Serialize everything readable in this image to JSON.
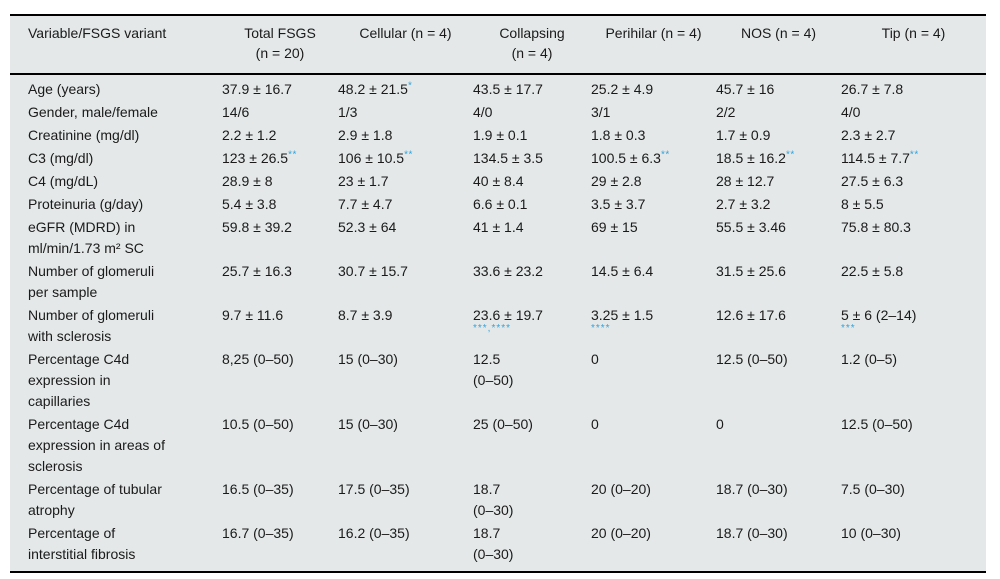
{
  "accent_colors": {
    "table_background": "#e4e8e9",
    "rule_color": "#000000",
    "significance_marker_color": "#35a3d9",
    "text_color": "#1a1a1a"
  },
  "table": {
    "headers": [
      "Variable/FSGS variant",
      "Total FSGS\n(n = 20)",
      "Cellular (n = 4)",
      "Collapsing\n(n = 4)",
      "Perihilar (n = 4)",
      "NOS (n = 4)",
      "Tip (n = 4)"
    ],
    "rows": [
      {
        "label": "Age (years)",
        "cells": [
          {
            "v": "37.9 ± 16.7"
          },
          {
            "v": "48.2 ± 21.5",
            "sup": "*"
          },
          {
            "v": "43.5 ± 17.7"
          },
          {
            "v": "25.2 ± 4.9"
          },
          {
            "v": "45.7 ± 16"
          },
          {
            "v": "26.7 ± 7.8"
          }
        ]
      },
      {
        "label": "Gender, male/female",
        "cells": [
          {
            "v": "14/6"
          },
          {
            "v": "1/3"
          },
          {
            "v": "4/0"
          },
          {
            "v": "3/1"
          },
          {
            "v": "2/2"
          },
          {
            "v": "4/0"
          }
        ]
      },
      {
        "label": "Creatinine (mg/dl)",
        "cells": [
          {
            "v": "2.2 ± 1.2"
          },
          {
            "v": "2.9 ± 1.8"
          },
          {
            "v": "1.9 ± 0.1"
          },
          {
            "v": "1.8 ± 0.3"
          },
          {
            "v": "1.7 ± 0.9"
          },
          {
            "v": "2.3 ± 2.7"
          }
        ]
      },
      {
        "label": "C3 (mg/dl)",
        "cells": [
          {
            "v": "123 ± 26.5",
            "sup": "**"
          },
          {
            "v": "106 ± 10.5",
            "sup": "**"
          },
          {
            "v": "134.5 ± 3.5"
          },
          {
            "v": "100.5 ± 6.3",
            "sup": "**"
          },
          {
            "v": "18.5 ± 16.2",
            "sup": "**"
          },
          {
            "v": "114.5 ± 7.7",
            "sup": "**"
          }
        ]
      },
      {
        "label": "C4 (mg/dL)",
        "cells": [
          {
            "v": "28.9 ± 8"
          },
          {
            "v": "23 ± 1.7"
          },
          {
            "v": "40 ± 8.4"
          },
          {
            "v": "29 ± 2.8"
          },
          {
            "v": "28 ± 12.7"
          },
          {
            "v": "27.5 ± 6.3"
          }
        ]
      },
      {
        "label": "Proteinuria (g/day)",
        "cells": [
          {
            "v": "5.4 ± 3.8"
          },
          {
            "v": "7.7 ± 4.7"
          },
          {
            "v": "6.6 ± 0.1"
          },
          {
            "v": "3.5 ± 3.7"
          },
          {
            "v": "2.7 ± 3.2"
          },
          {
            "v": "8 ± 5.5"
          }
        ]
      },
      {
        "label": "eGFR (MDRD) in ml/min/1.73 m² SC",
        "cells": [
          {
            "v": "59.8 ± 39.2"
          },
          {
            "v": "52.3 ± 64"
          },
          {
            "v": "41 ± 1.4"
          },
          {
            "v": "69 ± 15"
          },
          {
            "v": "55.5 ± 3.46"
          },
          {
            "v": "75.8 ± 80.3"
          }
        ]
      },
      {
        "label": "Number of glomeruli per sample",
        "cells": [
          {
            "v": "25.7 ± 16.3"
          },
          {
            "v": "30.7 ± 15.7"
          },
          {
            "v": "33.6 ± 23.2"
          },
          {
            "v": "14.5 ± 6.4"
          },
          {
            "v": "31.5 ± 25.6"
          },
          {
            "v": "22.5 ± 5.8"
          }
        ]
      },
      {
        "label": "Number of glomeruli with sclerosis",
        "cells": [
          {
            "v": "9.7 ± 11.6"
          },
          {
            "v": "8.7 ± 3.9"
          },
          {
            "v": "23.6 ± 19.7",
            "below": "***,****"
          },
          {
            "v": "3.25 ± 1.5",
            "below": "****"
          },
          {
            "v": "12.6 ± 17.6"
          },
          {
            "v": "5 ± 6 (2–14)",
            "below": "***"
          }
        ]
      },
      {
        "label": "Percentage C4d expression in capillaries",
        "cells": [
          {
            "v": "8,25 (0–50)"
          },
          {
            "v": "15 (0–30)"
          },
          {
            "v": "12.5\n(0–50)"
          },
          {
            "v": "0"
          },
          {
            "v": "12.5 (0–50)"
          },
          {
            "v": "1.2 (0–5)"
          }
        ]
      },
      {
        "label": "Percentage C4d expression in areas of sclerosis",
        "cells": [
          {
            "v": "10.5 (0–50)"
          },
          {
            "v": "15 (0–30)"
          },
          {
            "v": "25 (0–50)"
          },
          {
            "v": "0"
          },
          {
            "v": "0"
          },
          {
            "v": "12.5 (0–50)"
          }
        ]
      },
      {
        "label": "Percentage of tubular atrophy",
        "cells": [
          {
            "v": "16.5 (0–35)"
          },
          {
            "v": "17.5 (0–35)"
          },
          {
            "v": "18.7\n(0–30)"
          },
          {
            "v": "20 (0–20)"
          },
          {
            "v": "18.7 (0–30)"
          },
          {
            "v": "7.5 (0–30)"
          }
        ]
      },
      {
        "label": "Percentage of interstitial fibrosis",
        "cells": [
          {
            "v": "16.7 (0–35)"
          },
          {
            "v": "16.2 (0–35)"
          },
          {
            "v": "18.7\n(0–30)"
          },
          {
            "v": "20 (0–20)"
          },
          {
            "v": "18.7 (0–30)"
          },
          {
            "v": "10 (0–30)"
          }
        ]
      }
    ]
  }
}
